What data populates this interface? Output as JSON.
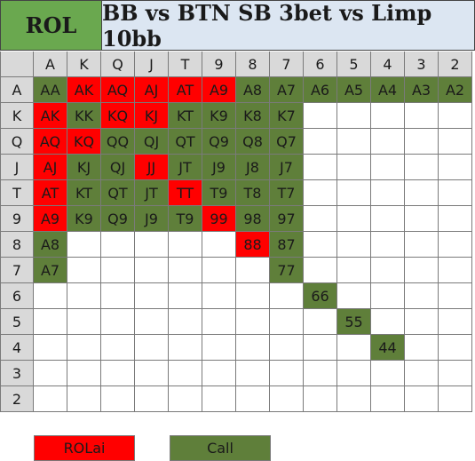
{
  "title": {
    "left": "ROL",
    "main": "BB vs BTN SB 3bet vs Limp 10bb"
  },
  "ranks": [
    "A",
    "K",
    "Q",
    "J",
    "T",
    "9",
    "8",
    "7",
    "6",
    "5",
    "4",
    "3",
    "2"
  ],
  "matrix": [
    [
      {
        "label": "AA",
        "action": "call"
      },
      {
        "label": "AK",
        "action": "rol"
      },
      {
        "label": "AQ",
        "action": "rol"
      },
      {
        "label": "AJ",
        "action": "rol"
      },
      {
        "label": "AT",
        "action": "rol"
      },
      {
        "label": "A9",
        "action": "rol"
      },
      {
        "label": "A8",
        "action": "call"
      },
      {
        "label": "A7",
        "action": "call"
      },
      {
        "label": "A6",
        "action": "call"
      },
      {
        "label": "A5",
        "action": "call"
      },
      {
        "label": "A4",
        "action": "call"
      },
      {
        "label": "A3",
        "action": "call"
      },
      {
        "label": "A2",
        "action": "call"
      }
    ],
    [
      {
        "label": "AK",
        "action": "rol"
      },
      {
        "label": "KK",
        "action": "call"
      },
      {
        "label": "KQ",
        "action": "rol"
      },
      {
        "label": "KJ",
        "action": "rol"
      },
      {
        "label": "KT",
        "action": "call"
      },
      {
        "label": "K9",
        "action": "call"
      },
      {
        "label": "K8",
        "action": "call"
      },
      {
        "label": "K7",
        "action": "call"
      },
      {
        "label": "",
        "action": "empty"
      },
      {
        "label": "",
        "action": "empty"
      },
      {
        "label": "",
        "action": "empty"
      },
      {
        "label": "",
        "action": "empty"
      },
      {
        "label": "",
        "action": "empty"
      }
    ],
    [
      {
        "label": "AQ",
        "action": "rol"
      },
      {
        "label": "KQ",
        "action": "rol"
      },
      {
        "label": "QQ",
        "action": "call"
      },
      {
        "label": "QJ",
        "action": "call"
      },
      {
        "label": "QT",
        "action": "call"
      },
      {
        "label": "Q9",
        "action": "call"
      },
      {
        "label": "Q8",
        "action": "call"
      },
      {
        "label": "Q7",
        "action": "call"
      },
      {
        "label": "",
        "action": "empty"
      },
      {
        "label": "",
        "action": "empty"
      },
      {
        "label": "",
        "action": "empty"
      },
      {
        "label": "",
        "action": "empty"
      },
      {
        "label": "",
        "action": "empty"
      }
    ],
    [
      {
        "label": "AJ",
        "action": "rol"
      },
      {
        "label": "KJ",
        "action": "call"
      },
      {
        "label": "QJ",
        "action": "call"
      },
      {
        "label": "JJ",
        "action": "rol"
      },
      {
        "label": "JT",
        "action": "call"
      },
      {
        "label": "J9",
        "action": "call"
      },
      {
        "label": "J8",
        "action": "call"
      },
      {
        "label": "J7",
        "action": "call"
      },
      {
        "label": "",
        "action": "empty"
      },
      {
        "label": "",
        "action": "empty"
      },
      {
        "label": "",
        "action": "empty"
      },
      {
        "label": "",
        "action": "empty"
      },
      {
        "label": "",
        "action": "empty"
      }
    ],
    [
      {
        "label": "AT",
        "action": "rol"
      },
      {
        "label": "KT",
        "action": "call"
      },
      {
        "label": "QT",
        "action": "call"
      },
      {
        "label": "JT",
        "action": "call"
      },
      {
        "label": "TT",
        "action": "rol"
      },
      {
        "label": "T9",
        "action": "call"
      },
      {
        "label": "T8",
        "action": "call"
      },
      {
        "label": "T7",
        "action": "call"
      },
      {
        "label": "",
        "action": "empty"
      },
      {
        "label": "",
        "action": "empty"
      },
      {
        "label": "",
        "action": "empty"
      },
      {
        "label": "",
        "action": "empty"
      },
      {
        "label": "",
        "action": "empty"
      }
    ],
    [
      {
        "label": "A9",
        "action": "rol"
      },
      {
        "label": "K9",
        "action": "call"
      },
      {
        "label": "Q9",
        "action": "call"
      },
      {
        "label": "J9",
        "action": "call"
      },
      {
        "label": "T9",
        "action": "call"
      },
      {
        "label": "99",
        "action": "rol"
      },
      {
        "label": "98",
        "action": "call"
      },
      {
        "label": "97",
        "action": "call"
      },
      {
        "label": "",
        "action": "empty"
      },
      {
        "label": "",
        "action": "empty"
      },
      {
        "label": "",
        "action": "empty"
      },
      {
        "label": "",
        "action": "empty"
      },
      {
        "label": "",
        "action": "empty"
      }
    ],
    [
      {
        "label": "A8",
        "action": "call"
      },
      {
        "label": "",
        "action": "empty"
      },
      {
        "label": "",
        "action": "empty"
      },
      {
        "label": "",
        "action": "empty"
      },
      {
        "label": "",
        "action": "empty"
      },
      {
        "label": "",
        "action": "empty"
      },
      {
        "label": "88",
        "action": "rol"
      },
      {
        "label": "87",
        "action": "call"
      },
      {
        "label": "",
        "action": "empty"
      },
      {
        "label": "",
        "action": "empty"
      },
      {
        "label": "",
        "action": "empty"
      },
      {
        "label": "",
        "action": "empty"
      },
      {
        "label": "",
        "action": "empty"
      }
    ],
    [
      {
        "label": "A7",
        "action": "call"
      },
      {
        "label": "",
        "action": "empty"
      },
      {
        "label": "",
        "action": "empty"
      },
      {
        "label": "",
        "action": "empty"
      },
      {
        "label": "",
        "action": "empty"
      },
      {
        "label": "",
        "action": "empty"
      },
      {
        "label": "",
        "action": "empty"
      },
      {
        "label": "77",
        "action": "call"
      },
      {
        "label": "",
        "action": "empty"
      },
      {
        "label": "",
        "action": "empty"
      },
      {
        "label": "",
        "action": "empty"
      },
      {
        "label": "",
        "action": "empty"
      },
      {
        "label": "",
        "action": "empty"
      }
    ],
    [
      {
        "label": "",
        "action": "empty"
      },
      {
        "label": "",
        "action": "empty"
      },
      {
        "label": "",
        "action": "empty"
      },
      {
        "label": "",
        "action": "empty"
      },
      {
        "label": "",
        "action": "empty"
      },
      {
        "label": "",
        "action": "empty"
      },
      {
        "label": "",
        "action": "empty"
      },
      {
        "label": "",
        "action": "empty"
      },
      {
        "label": "66",
        "action": "call"
      },
      {
        "label": "",
        "action": "empty"
      },
      {
        "label": "",
        "action": "empty"
      },
      {
        "label": "",
        "action": "empty"
      },
      {
        "label": "",
        "action": "empty"
      }
    ],
    [
      {
        "label": "",
        "action": "empty"
      },
      {
        "label": "",
        "action": "empty"
      },
      {
        "label": "",
        "action": "empty"
      },
      {
        "label": "",
        "action": "empty"
      },
      {
        "label": "",
        "action": "empty"
      },
      {
        "label": "",
        "action": "empty"
      },
      {
        "label": "",
        "action": "empty"
      },
      {
        "label": "",
        "action": "empty"
      },
      {
        "label": "",
        "action": "empty"
      },
      {
        "label": "55",
        "action": "call"
      },
      {
        "label": "",
        "action": "empty"
      },
      {
        "label": "",
        "action": "empty"
      },
      {
        "label": "",
        "action": "empty"
      }
    ],
    [
      {
        "label": "",
        "action": "empty"
      },
      {
        "label": "",
        "action": "empty"
      },
      {
        "label": "",
        "action": "empty"
      },
      {
        "label": "",
        "action": "empty"
      },
      {
        "label": "",
        "action": "empty"
      },
      {
        "label": "",
        "action": "empty"
      },
      {
        "label": "",
        "action": "empty"
      },
      {
        "label": "",
        "action": "empty"
      },
      {
        "label": "",
        "action": "empty"
      },
      {
        "label": "",
        "action": "empty"
      },
      {
        "label": "44",
        "action": "call"
      },
      {
        "label": "",
        "action": "empty"
      },
      {
        "label": "",
        "action": "empty"
      }
    ],
    [
      {
        "label": "",
        "action": "empty"
      },
      {
        "label": "",
        "action": "empty"
      },
      {
        "label": "",
        "action": "empty"
      },
      {
        "label": "",
        "action": "empty"
      },
      {
        "label": "",
        "action": "empty"
      },
      {
        "label": "",
        "action": "empty"
      },
      {
        "label": "",
        "action": "empty"
      },
      {
        "label": "",
        "action": "empty"
      },
      {
        "label": "",
        "action": "empty"
      },
      {
        "label": "",
        "action": "empty"
      },
      {
        "label": "",
        "action": "empty"
      },
      {
        "label": "",
        "action": "empty"
      },
      {
        "label": "",
        "action": "empty"
      }
    ],
    [
      {
        "label": "",
        "action": "empty"
      },
      {
        "label": "",
        "action": "empty"
      },
      {
        "label": "",
        "action": "empty"
      },
      {
        "label": "",
        "action": "empty"
      },
      {
        "label": "",
        "action": "empty"
      },
      {
        "label": "",
        "action": "empty"
      },
      {
        "label": "",
        "action": "empty"
      },
      {
        "label": "",
        "action": "empty"
      },
      {
        "label": "",
        "action": "empty"
      },
      {
        "label": "",
        "action": "empty"
      },
      {
        "label": "",
        "action": "empty"
      },
      {
        "label": "",
        "action": "empty"
      },
      {
        "label": "",
        "action": "empty"
      }
    ]
  ],
  "legend": [
    {
      "label": "ROLai",
      "action": "rol"
    },
    {
      "label": "Call",
      "action": "call"
    }
  ],
  "colors": {
    "rol": "#ff0000",
    "call": "#5f7f3a",
    "header": "#d9d9d9",
    "title_left": "#6aa84f",
    "title_main": "#dce6f2"
  }
}
